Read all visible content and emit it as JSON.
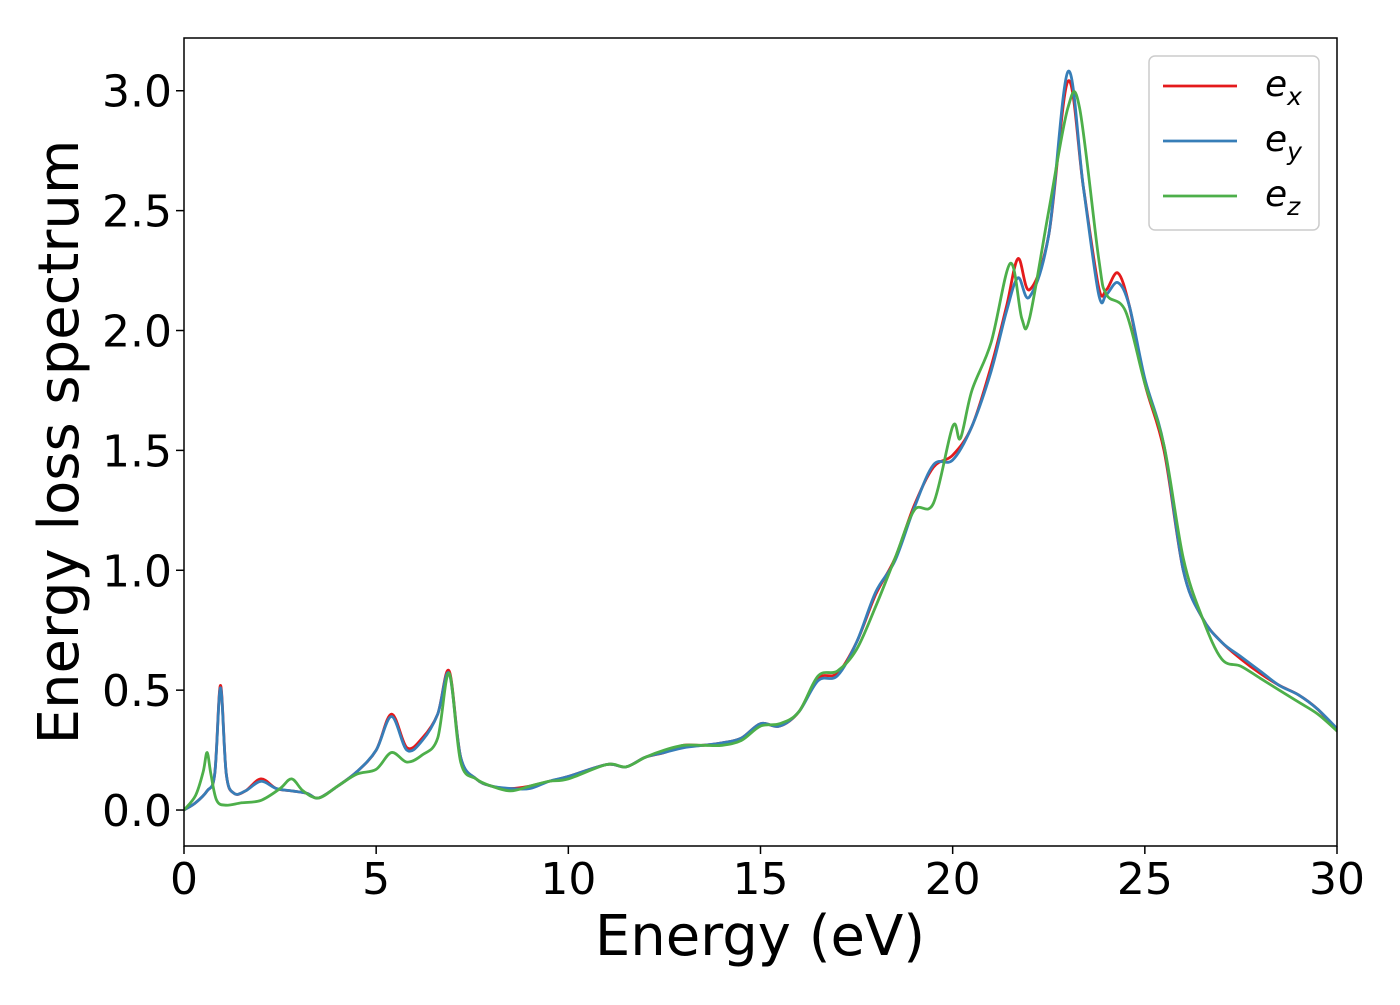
{
  "chart_data": {
    "type": "line",
    "title": "",
    "xlabel": "Energy (eV)",
    "ylabel": "Energy loss spectrum",
    "xlim": [
      0,
      30
    ],
    "ylim": [
      -0.15,
      3.22
    ],
    "xticks": [
      0,
      5,
      10,
      15,
      20,
      25,
      30
    ],
    "xtick_labels": [
      "0",
      "5",
      "10",
      "15",
      "20",
      "25",
      "30"
    ],
    "yticks": [
      0.0,
      0.5,
      1.0,
      1.5,
      2.0,
      2.5,
      3.0
    ],
    "ytick_labels": [
      "0.0",
      "0.5",
      "1.0",
      "1.5",
      "2.0",
      "2.5",
      "3.0"
    ],
    "grid": false,
    "legend_position": "top-right",
    "series": [
      {
        "name": "e",
        "subscript": "x",
        "color": "#e41a1c",
        "x": [
          0,
          0.3,
          0.6,
          0.8,
          0.95,
          1.1,
          1.3,
          1.6,
          2.0,
          2.4,
          2.8,
          3.2,
          3.5,
          4.0,
          4.5,
          5.0,
          5.4,
          5.8,
          6.2,
          6.6,
          6.9,
          7.2,
          7.6,
          8.0,
          8.5,
          9.0,
          9.5,
          10.0,
          11.0,
          11.5,
          12.0,
          12.5,
          13.0,
          13.5,
          14.0,
          14.5,
          15.0,
          15.5,
          16.0,
          16.5,
          17.0,
          17.5,
          18.0,
          18.5,
          19.0,
          19.5,
          20.0,
          20.5,
          21.0,
          21.4,
          21.7,
          22.0,
          22.5,
          23.0,
          23.4,
          23.8,
          24.0,
          24.3,
          24.6,
          25.0,
          25.5,
          26.0,
          26.5,
          27.0,
          27.5,
          28.0,
          28.5,
          29.0,
          29.5,
          30.0
        ],
        "y": [
          0.0,
          0.03,
          0.08,
          0.15,
          0.52,
          0.15,
          0.07,
          0.08,
          0.13,
          0.09,
          0.08,
          0.07,
          0.05,
          0.1,
          0.16,
          0.25,
          0.4,
          0.26,
          0.3,
          0.4,
          0.58,
          0.22,
          0.13,
          0.1,
          0.09,
          0.1,
          0.12,
          0.14,
          0.19,
          0.18,
          0.22,
          0.24,
          0.27,
          0.27,
          0.28,
          0.3,
          0.36,
          0.35,
          0.41,
          0.55,
          0.57,
          0.7,
          0.9,
          1.05,
          1.27,
          1.43,
          1.48,
          1.6,
          1.85,
          2.1,
          2.3,
          2.17,
          2.4,
          3.04,
          2.6,
          2.18,
          2.17,
          2.24,
          2.1,
          1.78,
          1.5,
          1.0,
          0.8,
          0.7,
          0.63,
          0.57,
          0.52,
          0.48,
          0.42,
          0.33
        ]
      },
      {
        "name": "e",
        "subscript": "y",
        "color": "#377eb8",
        "x": [
          0,
          0.3,
          0.6,
          0.8,
          0.95,
          1.1,
          1.3,
          1.6,
          2.0,
          2.4,
          2.8,
          3.2,
          3.5,
          4.0,
          4.5,
          5.0,
          5.4,
          5.8,
          6.2,
          6.6,
          6.9,
          7.2,
          7.6,
          8.0,
          8.5,
          9.0,
          9.5,
          10.0,
          11.0,
          11.5,
          12.0,
          12.5,
          13.0,
          13.5,
          14.0,
          14.5,
          15.0,
          15.5,
          16.0,
          16.5,
          17.0,
          17.5,
          18.0,
          18.5,
          19.0,
          19.5,
          20.0,
          20.5,
          21.0,
          21.4,
          21.7,
          22.0,
          22.5,
          23.0,
          23.4,
          23.8,
          24.0,
          24.3,
          24.6,
          25.0,
          25.5,
          26.0,
          26.5,
          27.0,
          27.5,
          28.0,
          28.5,
          29.0,
          29.5,
          30.0
        ],
        "y": [
          0.0,
          0.03,
          0.08,
          0.15,
          0.51,
          0.15,
          0.07,
          0.08,
          0.12,
          0.09,
          0.08,
          0.07,
          0.05,
          0.1,
          0.16,
          0.25,
          0.39,
          0.25,
          0.29,
          0.4,
          0.57,
          0.22,
          0.13,
          0.1,
          0.09,
          0.09,
          0.12,
          0.14,
          0.19,
          0.18,
          0.22,
          0.24,
          0.26,
          0.27,
          0.28,
          0.3,
          0.36,
          0.35,
          0.41,
          0.54,
          0.56,
          0.7,
          0.91,
          1.04,
          1.26,
          1.44,
          1.46,
          1.6,
          1.83,
          2.08,
          2.22,
          2.14,
          2.4,
          3.08,
          2.6,
          2.15,
          2.15,
          2.2,
          2.1,
          1.8,
          1.52,
          1.0,
          0.8,
          0.7,
          0.64,
          0.58,
          0.52,
          0.48,
          0.42,
          0.34
        ]
      },
      {
        "name": "e",
        "subscript": "z",
        "color": "#4daf4a",
        "x": [
          0,
          0.3,
          0.5,
          0.6,
          0.7,
          0.85,
          1.1,
          1.5,
          2.0,
          2.5,
          2.8,
          3.1,
          3.5,
          4.0,
          4.5,
          5.0,
          5.4,
          5.8,
          6.2,
          6.6,
          6.9,
          7.2,
          7.6,
          8.0,
          8.5,
          9.0,
          9.5,
          10.0,
          11.0,
          11.5,
          12.0,
          12.5,
          13.0,
          13.5,
          14.0,
          14.5,
          15.0,
          15.5,
          16.0,
          16.5,
          17.0,
          17.5,
          18.0,
          18.5,
          19.0,
          19.5,
          20.0,
          20.2,
          20.5,
          21.0,
          21.5,
          21.8,
          22.0,
          22.5,
          23.0,
          23.3,
          23.8,
          24.0,
          24.5,
          25.0,
          25.5,
          26.0,
          26.5,
          27.0,
          27.5,
          28.0,
          28.5,
          29.0,
          29.5,
          30.0
        ],
        "y": [
          0.0,
          0.06,
          0.16,
          0.24,
          0.15,
          0.04,
          0.02,
          0.03,
          0.04,
          0.09,
          0.13,
          0.08,
          0.05,
          0.1,
          0.15,
          0.17,
          0.24,
          0.2,
          0.23,
          0.3,
          0.57,
          0.2,
          0.13,
          0.1,
          0.08,
          0.1,
          0.12,
          0.13,
          0.19,
          0.18,
          0.22,
          0.25,
          0.27,
          0.27,
          0.27,
          0.29,
          0.35,
          0.36,
          0.41,
          0.56,
          0.58,
          0.67,
          0.85,
          1.05,
          1.25,
          1.28,
          1.6,
          1.55,
          1.75,
          1.95,
          2.28,
          2.05,
          2.05,
          2.5,
          2.93,
          2.93,
          2.3,
          2.15,
          2.08,
          1.78,
          1.52,
          1.05,
          0.8,
          0.63,
          0.6,
          0.55,
          0.5,
          0.45,
          0.4,
          0.33
        ]
      }
    ]
  }
}
